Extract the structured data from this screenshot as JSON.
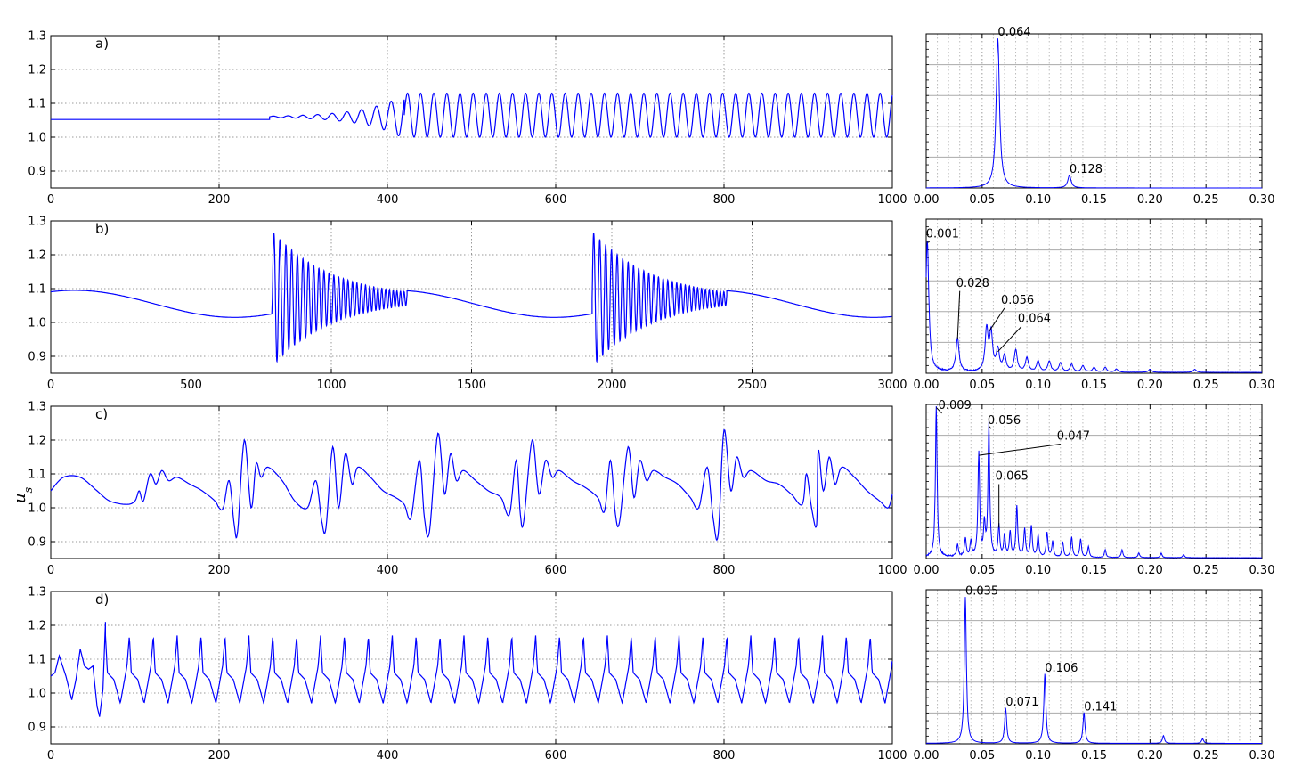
{
  "ylabel": "u_s",
  "series_color": "#0000ff",
  "chart_data": [
    {
      "panel": "a)",
      "type": "line",
      "xlim": [
        0,
        1000
      ],
      "ylim": [
        0.85,
        1.3
      ],
      "xticks": [
        0,
        200,
        400,
        600,
        800,
        1000
      ],
      "yticks": [
        0.9,
        1.0,
        1.1,
        1.2,
        1.3
      ],
      "grid": true,
      "segments": [
        {
          "t0": 0,
          "t1": 260,
          "mode": "flat",
          "base": 1.052
        },
        {
          "t0": 260,
          "t1": 420,
          "mode": "grow",
          "base": 1.06,
          "amp_start": 0.002,
          "amp_end": 0.065,
          "period": 17.5
        },
        {
          "t0": 420,
          "t1": 1000,
          "mode": "osc",
          "base": 1.065,
          "amp": 0.065,
          "period": 15.6
        }
      ]
    },
    {
      "panel": "b)",
      "type": "line",
      "xlim": [
        0,
        3000
      ],
      "ylim": [
        0.85,
        1.3
      ],
      "xticks": [
        0,
        500,
        1000,
        1500,
        2000,
        2500,
        3000
      ],
      "yticks": [
        0.9,
        1.0,
        1.1,
        1.2,
        1.3
      ],
      "grid": true,
      "segments": [
        {
          "t0": 0,
          "t1": 790,
          "mode": "slow",
          "base": 1.055,
          "amp": 0.04,
          "period": 1140,
          "phase0": 0
        },
        {
          "t0": 790,
          "t1": 1270,
          "mode": "burst",
          "base": 1.07,
          "amp_start": 0.2,
          "amp_end": 0.02,
          "period": 22
        },
        {
          "t0": 1270,
          "t1": 1930,
          "mode": "slow",
          "base": 1.055,
          "amp": 0.04,
          "period": 1140,
          "phase0": 0
        },
        {
          "t0": 1930,
          "t1": 2410,
          "mode": "burst",
          "base": 1.07,
          "amp_start": 0.2,
          "amp_end": 0.02,
          "period": 22
        },
        {
          "t0": 2410,
          "t1": 3000,
          "mode": "slow",
          "base": 1.055,
          "amp": 0.04,
          "period": 1140,
          "phase0": 0
        }
      ]
    },
    {
      "panel": "c)",
      "type": "line",
      "xlim": [
        0,
        1000
      ],
      "ylim": [
        0.85,
        1.3
      ],
      "xticks": [
        0,
        200,
        400,
        600,
        800,
        1000
      ],
      "yticks": [
        0.9,
        1.0,
        1.1,
        1.2,
        1.3
      ],
      "grid": true,
      "points": [
        [
          0,
          1.05
        ],
        [
          15,
          1.09
        ],
        [
          35,
          1.09
        ],
        [
          55,
          1.05
        ],
        [
          70,
          1.02
        ],
        [
          90,
          1.01
        ],
        [
          100,
          1.02
        ],
        [
          105,
          1.05
        ],
        [
          110,
          1.02
        ],
        [
          118,
          1.1
        ],
        [
          125,
          1.07
        ],
        [
          132,
          1.11
        ],
        [
          140,
          1.08
        ],
        [
          150,
          1.09
        ],
        [
          165,
          1.07
        ],
        [
          180,
          1.05
        ],
        [
          195,
          1.02
        ],
        [
          200,
          1.0
        ],
        [
          205,
          1.0
        ],
        [
          212,
          1.08
        ],
        [
          218,
          0.95
        ],
        [
          222,
          0.93
        ],
        [
          230,
          1.2
        ],
        [
          238,
          1.0
        ],
        [
          244,
          1.13
        ],
        [
          250,
          1.09
        ],
        [
          258,
          1.12
        ],
        [
          275,
          1.08
        ],
        [
          290,
          1.02
        ],
        [
          305,
          1.0
        ],
        [
          315,
          1.08
        ],
        [
          322,
          0.96
        ],
        [
          327,
          0.94
        ],
        [
          335,
          1.18
        ],
        [
          342,
          1.0
        ],
        [
          350,
          1.16
        ],
        [
          358,
          1.07
        ],
        [
          365,
          1.12
        ],
        [
          380,
          1.09
        ],
        [
          395,
          1.05
        ],
        [
          410,
          1.03
        ],
        [
          420,
          1.01
        ],
        [
          428,
          0.97
        ],
        [
          438,
          1.14
        ],
        [
          444,
          0.97
        ],
        [
          450,
          0.93
        ],
        [
          460,
          1.22
        ],
        [
          468,
          1.04
        ],
        [
          475,
          1.16
        ],
        [
          482,
          1.08
        ],
        [
          490,
          1.11
        ],
        [
          505,
          1.08
        ],
        [
          520,
          1.05
        ],
        [
          535,
          1.03
        ],
        [
          545,
          0.98
        ],
        [
          553,
          1.14
        ],
        [
          558,
          0.98
        ],
        [
          562,
          0.96
        ],
        [
          572,
          1.2
        ],
        [
          580,
          1.04
        ],
        [
          588,
          1.14
        ],
        [
          596,
          1.09
        ],
        [
          604,
          1.11
        ],
        [
          620,
          1.08
        ],
        [
          635,
          1.06
        ],
        [
          650,
          1.03
        ],
        [
          658,
          0.99
        ],
        [
          665,
          1.14
        ],
        [
          671,
          0.98
        ],
        [
          676,
          0.96
        ],
        [
          686,
          1.18
        ],
        [
          693,
          1.03
        ],
        [
          700,
          1.14
        ],
        [
          708,
          1.08
        ],
        [
          716,
          1.11
        ],
        [
          730,
          1.09
        ],
        [
          745,
          1.07
        ],
        [
          760,
          1.03
        ],
        [
          770,
          1.0
        ],
        [
          780,
          1.12
        ],
        [
          787,
          0.97
        ],
        [
          793,
          0.92
        ],
        [
          800,
          1.23
        ],
        [
          808,
          1.05
        ],
        [
          815,
          1.15
        ],
        [
          823,
          1.09
        ],
        [
          832,
          1.11
        ],
        [
          850,
          1.08
        ],
        [
          865,
          1.07
        ],
        [
          880,
          1.04
        ],
        [
          893,
          1.01
        ],
        [
          898,
          1.1
        ],
        [
          904,
          1.0
        ],
        [
          910,
          0.95
        ],
        [
          912,
          1.17
        ],
        [
          918,
          1.05
        ],
        [
          925,
          1.15
        ],
        [
          932,
          1.07
        ],
        [
          940,
          1.12
        ],
        [
          955,
          1.09
        ],
        [
          970,
          1.05
        ],
        [
          985,
          1.02
        ],
        [
          995,
          1.0
        ],
        [
          1000,
          1.04
        ]
      ]
    },
    {
      "panel": "d)",
      "type": "line",
      "xlim": [
        0,
        1000
      ],
      "ylim": [
        0.85,
        1.3
      ],
      "xticks": [
        0,
        200,
        400,
        600,
        800,
        1000
      ],
      "yticks": [
        0.9,
        1.0,
        1.1,
        1.2,
        1.3
      ],
      "grid": true,
      "pre_points": [
        [
          0,
          1.05
        ],
        [
          5,
          1.06
        ],
        [
          10,
          1.11
        ],
        [
          18,
          1.05
        ],
        [
          25,
          0.98
        ],
        [
          30,
          1.04
        ],
        [
          35,
          1.13
        ],
        [
          40,
          1.08
        ],
        [
          45,
          1.07
        ],
        [
          50,
          1.08
        ],
        [
          55,
          0.96
        ],
        [
          58,
          0.93
        ],
        [
          62,
          1.01
        ],
        [
          65,
          1.21
        ]
      ],
      "periodic": {
        "t0": 65,
        "t1": 1000,
        "period": 28.4,
        "peak": 1.17,
        "trough": 0.97
      }
    },
    {
      "panel": "a_spec",
      "type": "line",
      "xlim": [
        0,
        0.3
      ],
      "xticks": [
        0.0,
        0.05,
        0.1,
        0.15,
        0.2,
        0.25,
        0.3
      ],
      "xtick_labels": [
        "0.00",
        "0.05",
        "0.10",
        "0.15",
        "0.20",
        "0.25",
        "0.30"
      ],
      "peaks": [
        [
          0.064,
          0.97
        ],
        [
          0.128,
          0.08
        ]
      ],
      "width": 0.0018,
      "noise": 0.0,
      "floor": 0.0,
      "annotations": [
        {
          "text": "0.064",
          "x": 0.064,
          "y": 0.97
        },
        {
          "text": "0.128",
          "x": 0.128,
          "y": 0.08
        }
      ]
    },
    {
      "panel": "b_spec",
      "type": "line",
      "xlim": [
        0,
        0.3
      ],
      "xticks": [
        0.0,
        0.05,
        0.1,
        0.15,
        0.2,
        0.25,
        0.3
      ],
      "xtick_labels": [
        "0.00",
        "0.05",
        "0.10",
        "0.15",
        "0.20",
        "0.25",
        "0.30"
      ],
      "peaks": [
        [
          0.001,
          0.85
        ],
        [
          0.028,
          0.22
        ],
        [
          0.054,
          0.27
        ],
        [
          0.058,
          0.24
        ],
        [
          0.064,
          0.14
        ],
        [
          0.07,
          0.1
        ],
        [
          0.08,
          0.14
        ],
        [
          0.09,
          0.09
        ],
        [
          0.1,
          0.07
        ],
        [
          0.11,
          0.07
        ],
        [
          0.12,
          0.06
        ],
        [
          0.13,
          0.05
        ],
        [
          0.14,
          0.04
        ],
        [
          0.15,
          0.03
        ],
        [
          0.16,
          0.03
        ],
        [
          0.17,
          0.02
        ],
        [
          0.2,
          0.02
        ],
        [
          0.24,
          0.02
        ]
      ],
      "width": 0.0016,
      "noise": 0.01,
      "floor": 0.005,
      "annotations": [
        {
          "text": "0.001",
          "x": 0.001,
          "y": 0.85,
          "lx": 0.003,
          "ly": 0.87
        },
        {
          "text": "0.028",
          "x": 0.028,
          "y": 0.22,
          "lx": 0.03,
          "ly": 0.55
        },
        {
          "text": "0.056",
          "x": 0.056,
          "y": 0.27,
          "lx": 0.07,
          "ly": 0.44
        },
        {
          "text": "0.064",
          "x": 0.064,
          "y": 0.14,
          "lx": 0.085,
          "ly": 0.32
        }
      ]
    },
    {
      "panel": "c_spec",
      "type": "line",
      "xlim": [
        0,
        0.3
      ],
      "xticks": [
        0.0,
        0.05,
        0.1,
        0.15,
        0.2,
        0.25,
        0.3
      ],
      "xtick_labels": [
        "0.00",
        "0.05",
        "0.10",
        "0.15",
        "0.20",
        "0.25",
        "0.30"
      ],
      "peaks": [
        [
          0.009,
          0.98
        ],
        [
          0.028,
          0.08
        ],
        [
          0.035,
          0.12
        ],
        [
          0.04,
          0.1
        ],
        [
          0.047,
          0.67
        ],
        [
          0.052,
          0.2
        ],
        [
          0.056,
          0.86
        ],
        [
          0.065,
          0.2
        ],
        [
          0.07,
          0.14
        ],
        [
          0.075,
          0.16
        ],
        [
          0.081,
          0.33
        ],
        [
          0.088,
          0.18
        ],
        [
          0.094,
          0.2
        ],
        [
          0.1,
          0.14
        ],
        [
          0.108,
          0.16
        ],
        [
          0.113,
          0.1
        ],
        [
          0.122,
          0.1
        ],
        [
          0.13,
          0.13
        ],
        [
          0.138,
          0.12
        ],
        [
          0.145,
          0.07
        ],
        [
          0.16,
          0.05
        ],
        [
          0.175,
          0.05
        ],
        [
          0.19,
          0.03
        ],
        [
          0.21,
          0.03
        ],
        [
          0.23,
          0.02
        ]
      ],
      "width": 0.0009,
      "noise": 0.012,
      "floor": 0.005,
      "annotations": [
        {
          "text": "0.009",
          "x": 0.009,
          "y": 0.98,
          "lx": 0.014,
          "ly": 0.96
        },
        {
          "text": "0.056",
          "x": 0.056,
          "y": 0.86,
          "lx": 0.058,
          "ly": 0.86
        },
        {
          "text": "0.047",
          "x": 0.047,
          "y": 0.67,
          "lx": 0.12,
          "ly": 0.76
        },
        {
          "text": "0.065",
          "x": 0.065,
          "y": 0.2,
          "lx": 0.065,
          "ly": 0.5
        }
      ]
    },
    {
      "panel": "d_spec",
      "type": "line",
      "xlim": [
        0,
        0.3
      ],
      "xticks": [
        0.0,
        0.05,
        0.1,
        0.15,
        0.2,
        0.25,
        0.3
      ],
      "xtick_labels": [
        "0.00",
        "0.05",
        "0.10",
        "0.15",
        "0.20",
        "0.25",
        "0.30"
      ],
      "peaks": [
        [
          0.035,
          0.95
        ],
        [
          0.071,
          0.23
        ],
        [
          0.106,
          0.45
        ],
        [
          0.141,
          0.2
        ],
        [
          0.212,
          0.05
        ],
        [
          0.247,
          0.03
        ]
      ],
      "width": 0.0011,
      "noise": 0.0,
      "floor": 0.003,
      "annotations": [
        {
          "text": "0.035",
          "x": 0.035,
          "y": 0.95
        },
        {
          "text": "0.071",
          "x": 0.071,
          "y": 0.23
        },
        {
          "text": "0.106",
          "x": 0.106,
          "y": 0.45
        },
        {
          "text": "0.141",
          "x": 0.141,
          "y": 0.2
        }
      ]
    }
  ]
}
